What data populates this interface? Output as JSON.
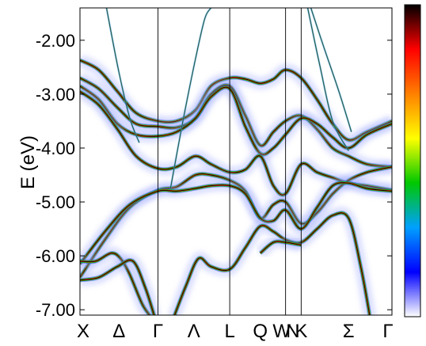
{
  "chart_data": {
    "type": "heatmap",
    "subtype": "band-structure spectral function",
    "title": "",
    "xlabel": "",
    "ylabel": "E (eV)",
    "ylim": [
      -7.1,
      -1.4
    ],
    "yticks": [
      -2.0,
      -3.0,
      -4.0,
      -5.0,
      -6.0,
      -7.0
    ],
    "ytick_labels": [
      "-2.00",
      "-3.00",
      "-4.00",
      "-5.00",
      "-6.00",
      "-7.00"
    ],
    "x_range": [
      0,
      1
    ],
    "kpoints": [
      {
        "label": "X",
        "x": 0.0,
        "line": false
      },
      {
        "label": "Δ",
        "x": 0.125,
        "line": false
      },
      {
        "label": "Γ",
        "x": 0.25,
        "line": true
      },
      {
        "label": "Λ",
        "x": 0.365,
        "line": false
      },
      {
        "label": "L",
        "x": 0.48,
        "line": true
      },
      {
        "label": "Q",
        "x": 0.578,
        "line": false
      },
      {
        "label": "W",
        "x": 0.659,
        "line": true
      },
      {
        "label": "N",
        "x": 0.675,
        "line": false
      },
      {
        "label": "K",
        "x": 0.709,
        "line": true
      },
      {
        "label": "Σ",
        "x": 0.861,
        "line": false
      },
      {
        "label": "Γ",
        "x": 1.0,
        "line": false
      }
    ],
    "colorbar": {
      "stops": [
        "#ffffff",
        "#0000ff",
        "#00a0ff",
        "#00c800",
        "#ffff00",
        "#ff8000",
        "#ff0000",
        "#000000"
      ],
      "ticks": false
    },
    "bands": [
      {
        "name": "band-1",
        "x": [
          0.0,
          0.06,
          0.12,
          0.18,
          0.25,
          0.31,
          0.37,
          0.42,
          0.48,
          0.53,
          0.578,
          0.62,
          0.659,
          0.709,
          0.76,
          0.81,
          0.861,
          0.92,
          1.0
        ],
        "y": [
          -2.37,
          -2.55,
          -2.95,
          -3.35,
          -3.5,
          -3.5,
          -3.3,
          -2.85,
          -2.7,
          -2.72,
          -2.8,
          -2.72,
          -2.55,
          -2.7,
          -3.1,
          -3.55,
          -3.85,
          -3.7,
          -3.5
        ]
      },
      {
        "name": "band-2",
        "x": [
          0.0,
          0.06,
          0.12,
          0.18,
          0.25,
          0.31,
          0.37,
          0.42,
          0.48,
          0.53,
          0.578,
          0.62,
          0.659,
          0.709,
          0.76,
          0.81,
          0.861,
          0.92,
          1.0
        ],
        "y": [
          -2.7,
          -2.9,
          -3.25,
          -3.55,
          -3.6,
          -3.62,
          -3.45,
          -3.0,
          -2.85,
          -3.4,
          -3.95,
          -3.7,
          -3.5,
          -3.4,
          -3.65,
          -4.0,
          -4.15,
          -4.3,
          -4.35
        ]
      },
      {
        "name": "band-3",
        "x": [
          0.0,
          0.06,
          0.12,
          0.18,
          0.25,
          0.31,
          0.37,
          0.42,
          0.48,
          0.53,
          0.578,
          0.62,
          0.659,
          0.709,
          0.76,
          0.81,
          0.861,
          0.92,
          1.0
        ],
        "y": [
          -2.85,
          -3.1,
          -3.55,
          -3.75,
          -3.78,
          -3.7,
          -3.45,
          -3.05,
          -2.9,
          -3.6,
          -4.1,
          -4.0,
          -3.75,
          -3.45,
          -3.55,
          -3.8,
          -4.0,
          -3.75,
          -3.55
        ]
      },
      {
        "name": "band-4",
        "x": [
          0.0,
          0.06,
          0.12,
          0.18,
          0.25,
          0.31,
          0.37,
          0.42,
          0.48,
          0.53,
          0.578,
          0.62,
          0.659,
          0.709,
          0.76,
          0.81,
          0.861,
          0.92,
          1.0
        ],
        "y": [
          -2.95,
          -3.2,
          -3.65,
          -4.15,
          -4.38,
          -4.35,
          -4.15,
          -4.3,
          -4.45,
          -4.4,
          -4.15,
          -4.7,
          -4.85,
          -4.3,
          -4.45,
          -4.55,
          -4.65,
          -4.7,
          -4.78
        ]
      },
      {
        "name": "band-5",
        "x": [
          0.0,
          0.08,
          0.16,
          0.25,
          0.31,
          0.37,
          0.42,
          0.48,
          0.53,
          0.578,
          0.62,
          0.659,
          0.709,
          0.76,
          0.81,
          0.861,
          0.92,
          1.0
        ],
        "y": [
          -6.4,
          -5.7,
          -5.1,
          -4.78,
          -4.72,
          -4.5,
          -4.5,
          -4.6,
          -4.8,
          -5.3,
          -5.05,
          -5.0,
          -5.4,
          -5.2,
          -4.85,
          -4.6,
          -4.45,
          -4.35
        ]
      },
      {
        "name": "band-6",
        "x": [
          0.0,
          0.08,
          0.16,
          0.25,
          0.31,
          0.37,
          0.42,
          0.48,
          0.53,
          0.578,
          0.62,
          0.659,
          0.709,
          0.76,
          0.81,
          0.861,
          0.92,
          1.0
        ],
        "y": [
          -6.15,
          -5.55,
          -5.05,
          -4.8,
          -4.8,
          -4.75,
          -4.7,
          -4.7,
          -4.85,
          -5.3,
          -5.35,
          -5.15,
          -5.5,
          -5.1,
          -4.7,
          -4.65,
          -4.75,
          -4.8
        ]
      },
      {
        "name": "band-7",
        "x": [
          0.0,
          0.05,
          0.1,
          0.13,
          0.16,
          0.2,
          0.23
        ],
        "y": [
          -6.1,
          -6.1,
          -5.95,
          -6.05,
          -6.35,
          -6.9,
          -7.15
        ]
      },
      {
        "name": "band-8",
        "x": [
          0.0,
          0.06,
          0.12,
          0.17,
          0.21,
          0.24
        ],
        "y": [
          -6.45,
          -6.4,
          -6.2,
          -6.1,
          -6.6,
          -7.15
        ]
      },
      {
        "name": "band-9",
        "x": [
          0.3,
          0.34,
          0.38,
          0.42,
          0.48,
          0.53,
          0.578,
          0.62,
          0.659,
          0.709,
          0.76,
          0.81,
          0.861,
          0.9,
          0.93
        ],
        "y": [
          -7.15,
          -6.55,
          -6.05,
          -6.2,
          -6.25,
          -5.85,
          -5.45,
          -5.55,
          -5.7,
          -5.75,
          -5.5,
          -5.25,
          -5.3,
          -6.2,
          -7.15
        ]
      },
      {
        "name": "band-10",
        "x": [
          0.578,
          0.62,
          0.659,
          0.709
        ],
        "y": [
          -5.95,
          -5.75,
          -5.75,
          -5.8
        ]
      },
      {
        "name": "free-1",
        "x": [
          0.085,
          0.125,
          0.16,
          0.19
        ],
        "y": [
          -1.4,
          -2.6,
          -3.45,
          -3.9
        ]
      },
      {
        "name": "free-2",
        "x": [
          0.29,
          0.33,
          0.37,
          0.4,
          0.42
        ],
        "y": [
          -4.75,
          -3.5,
          -2.35,
          -1.6,
          -1.4
        ]
      },
      {
        "name": "free-3",
        "x": [
          0.74,
          0.78,
          0.83,
          0.87
        ],
        "y": [
          -1.4,
          -2.1,
          -2.95,
          -3.7
        ]
      },
      {
        "name": "free-4",
        "x": [
          0.73,
          0.77,
          0.81,
          0.861
        ],
        "y": [
          -1.4,
          -2.5,
          -3.5,
          -4.05
        ]
      }
    ]
  }
}
